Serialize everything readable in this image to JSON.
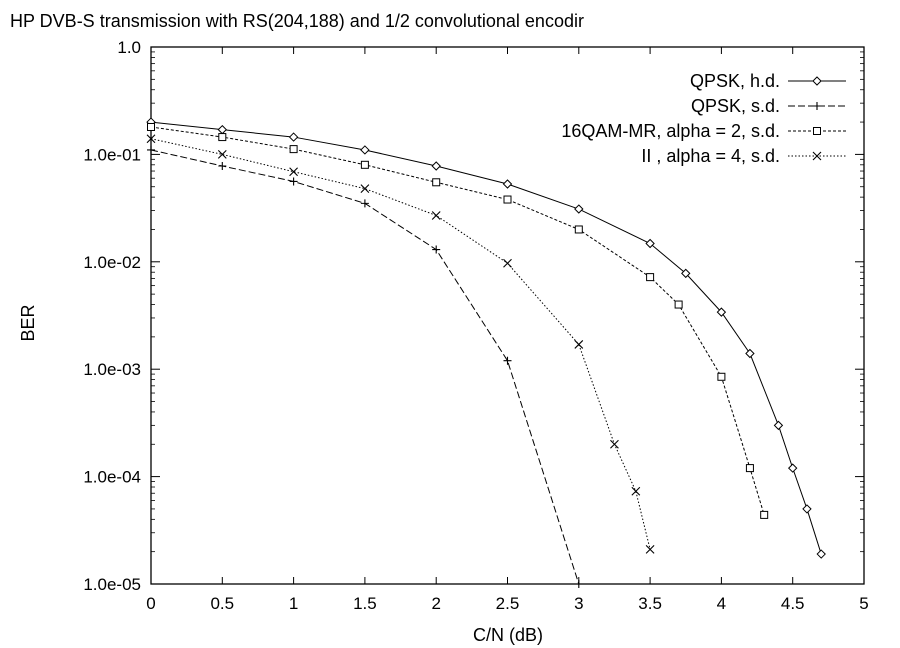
{
  "chart_data": {
    "type": "line",
    "title": "HP DVB-S transmission with RS(204,188) and 1/2 convolutional encodir",
    "xlabel": "C/N  (dB)",
    "ylabel": "BER",
    "xlim": [
      0,
      5
    ],
    "ylim": [
      1e-05,
      1.0
    ],
    "yscale": "log",
    "x_ticks": [
      0,
      0.5,
      1,
      1.5,
      2,
      2.5,
      3,
      3.5,
      4,
      4.5,
      5
    ],
    "x_tick_labels": [
      "0",
      "0.5",
      "1",
      "1.5",
      "2",
      "2.5",
      "3",
      "3.5",
      "4",
      "4.5",
      "5"
    ],
    "y_ticks": [
      1e-05,
      0.0001,
      0.001,
      0.01,
      0.1,
      1.0
    ],
    "y_tick_labels": [
      "1.0e-05",
      "1.0e-04",
      "1.0e-03",
      "1.0e-02",
      "1.0e-01",
      "1.0"
    ],
    "legend_position": "top-right",
    "grid": false,
    "series": [
      {
        "name": "QPSK, h.d.",
        "marker": "diamond",
        "dash": "solid",
        "x": [
          0,
          0.5,
          1,
          1.5,
          2,
          2.5,
          3,
          3.5,
          3.75,
          4,
          4.2,
          4.4,
          4.5,
          4.6,
          4.7
        ],
        "y": [
          0.2,
          0.17,
          0.145,
          0.11,
          0.078,
          0.053,
          0.031,
          0.0148,
          0.0078,
          0.0034,
          0.0014,
          0.0003,
          0.00012,
          5e-05,
          1.9e-05
        ]
      },
      {
        "name": "QPSK, s.d.",
        "marker": "plus",
        "dash": "dashed",
        "x": [
          0,
          0.5,
          1,
          1.5,
          2,
          2.5,
          3
        ],
        "y": [
          0.11,
          0.078,
          0.056,
          0.035,
          0.013,
          0.0012,
          1e-05
        ]
      },
      {
        "name": "16QAM-MR, alpha = 2, s.d.",
        "marker": "square",
        "dash": "dotted",
        "x": [
          0,
          0.5,
          1,
          1.5,
          2,
          2.5,
          3,
          3.5,
          3.7,
          4,
          4.2,
          4.3
        ],
        "y": [
          0.18,
          0.145,
          0.112,
          0.08,
          0.055,
          0.038,
          0.02,
          0.0072,
          0.004,
          0.00085,
          0.00012,
          4.4e-05
        ]
      },
      {
        "name": "II  , alpha = 4, s.d.",
        "marker": "cross",
        "dash": "finedotted",
        "x": [
          0,
          0.5,
          1,
          1.5,
          2,
          2.5,
          3,
          3.25,
          3.4,
          3.5
        ],
        "y": [
          0.14,
          0.1,
          0.069,
          0.048,
          0.027,
          0.0097,
          0.0017,
          0.0002,
          7.3e-05,
          2.1e-05
        ]
      }
    ]
  }
}
